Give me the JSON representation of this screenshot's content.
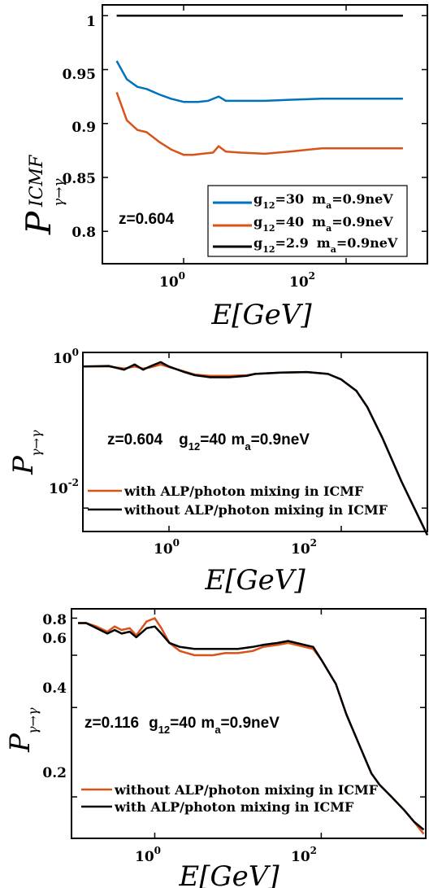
{
  "colors": {
    "blue": "#0072bd",
    "orange": "#d95319",
    "black": "#000000"
  },
  "chart_data": [
    {
      "type": "line",
      "xscale": "log",
      "xlim": [
        0.1,
        1000
      ],
      "ylim": [
        0.77,
        1.01
      ],
      "yticks": [
        0.8,
        0.85,
        0.9,
        0.95,
        1
      ],
      "ytick_labels": [
        "0.8",
        "0.85",
        "0.9",
        "0.95",
        "1"
      ],
      "xticks": [
        1,
        100
      ],
      "xtick_bases": [
        "10",
        "10"
      ],
      "xtick_exps": [
        "0",
        "2"
      ],
      "xlabel": "E[GeV]",
      "ylabel": {
        "main": "P",
        "sub": "γ→γ",
        "sup": "ICMF"
      },
      "annotation": "z=0.604",
      "legend": {
        "position": "bottom-right",
        "entries": [
          {
            "g": "g",
            "g_sub": "12",
            "g_val": "=30",
            "m": "m",
            "m_sub": "a",
            "m_val": "=0.9neV",
            "color_key": "blue"
          },
          {
            "g": "g",
            "g_sub": "12",
            "g_val": "=40",
            "m": "m",
            "m_sub": "a",
            "m_val": "=0.9neV",
            "color_key": "orange"
          },
          {
            "g": "g",
            "g_sub": "12",
            "g_val": "=2.9",
            "m": "m",
            "m_sub": "a",
            "m_val": "=0.9neV",
            "color_key": "black"
          }
        ]
      },
      "series": [
        {
          "color_key": "blue",
          "x": [
            0.15,
            0.2,
            0.27,
            0.35,
            0.5,
            0.7,
            1.0,
            1.5,
            2.0,
            2.7,
            3.3,
            4.0,
            6.0,
            10,
            20,
            50,
            100,
            500
          ],
          "y": [
            0.958,
            0.941,
            0.934,
            0.932,
            0.927,
            0.923,
            0.92,
            0.92,
            0.921,
            0.925,
            0.921,
            0.921,
            0.921,
            0.921,
            0.922,
            0.923,
            0.923,
            0.923
          ]
        },
        {
          "color_key": "orange",
          "x": [
            0.15,
            0.2,
            0.27,
            0.35,
            0.5,
            0.7,
            1.0,
            1.3,
            1.7,
            2.3,
            2.7,
            3.3,
            5,
            10,
            20,
            50,
            100,
            500
          ],
          "y": [
            0.929,
            0.903,
            0.894,
            0.892,
            0.883,
            0.876,
            0.871,
            0.871,
            0.872,
            0.873,
            0.879,
            0.874,
            0.873,
            0.872,
            0.874,
            0.877,
            0.877,
            0.877
          ]
        },
        {
          "color_key": "black",
          "x": [
            0.15,
            1,
            10,
            100,
            500
          ],
          "y": [
            1.0,
            1.0,
            1.0,
            1.0,
            1.0
          ]
        }
      ]
    },
    {
      "type": "line",
      "xscale": "log",
      "yscale": "log",
      "xlim": [
        0.1,
        1000
      ],
      "ylim": [
        0.005,
        1
      ],
      "yticks": [
        0.01,
        1
      ],
      "ytick_bases": [
        "10",
        "10"
      ],
      "ytick_exps": [
        "-2",
        "0"
      ],
      "xticks": [
        1,
        100
      ],
      "xtick_bases": [
        "10",
        "10"
      ],
      "xtick_exps": [
        "0",
        "2"
      ],
      "xlabel": "E[GeV]",
      "ylabel": {
        "main": "P",
        "sub": "γ→γ"
      },
      "annotation": {
        "z": "z=0.604",
        "g": "g",
        "g_sub": "12",
        "g_val": "=40",
        "m": "m",
        "m_sub": "a",
        "m_val": "=0.9neV"
      },
      "legend": {
        "position": "bottom-left",
        "entries": [
          {
            "label": "with ALP/photon mixing in ICMF",
            "color_key": "orange"
          },
          {
            "label": "without ALP/photon mixing in ICMF",
            "color_key": "black"
          }
        ]
      },
      "series": [
        {
          "color_key": "orange",
          "x": [
            0.1,
            0.2,
            0.3,
            0.4,
            0.5,
            0.6,
            0.8,
            1.0,
            1.5,
            2,
            3,
            5,
            8,
            10,
            20,
            40,
            70,
            100,
            150,
            200,
            300,
            500,
            800,
            1000
          ],
          "y": [
            0.66,
            0.66,
            0.62,
            0.66,
            0.62,
            0.64,
            0.7,
            0.65,
            0.57,
            0.52,
            0.5,
            0.5,
            0.51,
            0.53,
            0.55,
            0.56,
            0.53,
            0.45,
            0.32,
            0.2,
            0.08,
            0.022,
            0.0075,
            0.0045
          ]
        },
        {
          "color_key": "black",
          "x": [
            0.1,
            0.2,
            0.3,
            0.4,
            0.5,
            0.6,
            0.8,
            1.0,
            1.5,
            2,
            3,
            5,
            8,
            10,
            20,
            40,
            70,
            100,
            150,
            200,
            300,
            500,
            800,
            1000
          ],
          "y": [
            0.66,
            0.67,
            0.6,
            0.7,
            0.6,
            0.66,
            0.75,
            0.66,
            0.56,
            0.51,
            0.48,
            0.48,
            0.5,
            0.53,
            0.55,
            0.56,
            0.53,
            0.45,
            0.32,
            0.2,
            0.08,
            0.022,
            0.0075,
            0.0045
          ]
        }
      ]
    },
    {
      "type": "line",
      "xscale": "log",
      "yscale": "log",
      "xlim": [
        0.1,
        1800
      ],
      "ylim": [
        0.145,
        0.86
      ],
      "yticks": [
        0.2,
        0.4,
        0.6,
        0.8
      ],
      "ytick_labels": [
        "0.2",
        "0.4",
        "0.6",
        "0.8"
      ],
      "xticks": [
        1,
        100
      ],
      "xtick_bases": [
        "10",
        "10"
      ],
      "xtick_exps": [
        "0",
        "2"
      ],
      "xlabel": "E[GeV]",
      "ylabel": {
        "main": "P",
        "sub": "γ→γ"
      },
      "annotation": {
        "z": "z=0.116",
        "g": "g",
        "g_sub": "12",
        "g_val": "=40",
        "m": "m",
        "m_sub": "a",
        "m_val": "=0.9neV"
      },
      "legend": {
        "position": "bottom-left",
        "entries": [
          {
            "label": "without ALP/photon mixing in ICMF",
            "color_key": "orange"
          },
          {
            "label": "with ALP/photon mixing in ICMF",
            "color_key": "black"
          }
        ]
      },
      "series": [
        {
          "color_key": "orange",
          "x": [
            0.12,
            0.15,
            0.2,
            0.27,
            0.33,
            0.4,
            0.5,
            0.6,
            0.8,
            1.0,
            1.2,
            1.5,
            2,
            3,
            5,
            7,
            10,
            15,
            20,
            30,
            40,
            50,
            80,
            100,
            150,
            200,
            300,
            400,
            500,
            700,
            1000,
            1300,
            1700
          ],
          "y": [
            0.77,
            0.77,
            0.75,
            0.72,
            0.75,
            0.73,
            0.74,
            0.7,
            0.78,
            0.8,
            0.74,
            0.66,
            0.62,
            0.6,
            0.6,
            0.61,
            0.61,
            0.62,
            0.64,
            0.65,
            0.66,
            0.65,
            0.63,
            0.58,
            0.48,
            0.38,
            0.29,
            0.24,
            0.22,
            0.2,
            0.18,
            0.165,
            0.15
          ]
        },
        {
          "color_key": "black",
          "x": [
            0.12,
            0.15,
            0.2,
            0.27,
            0.33,
            0.4,
            0.5,
            0.6,
            0.8,
            1.0,
            1.2,
            1.5,
            2,
            3,
            5,
            7,
            10,
            15,
            20,
            30,
            40,
            50,
            80,
            100,
            150,
            200,
            300,
            400,
            500,
            700,
            1000,
            1300,
            1700
          ],
          "y": [
            0.77,
            0.77,
            0.74,
            0.71,
            0.73,
            0.71,
            0.72,
            0.69,
            0.74,
            0.75,
            0.71,
            0.66,
            0.64,
            0.63,
            0.63,
            0.63,
            0.63,
            0.64,
            0.65,
            0.66,
            0.67,
            0.66,
            0.64,
            0.58,
            0.48,
            0.38,
            0.29,
            0.24,
            0.22,
            0.2,
            0.18,
            0.165,
            0.155
          ]
        }
      ]
    }
  ]
}
